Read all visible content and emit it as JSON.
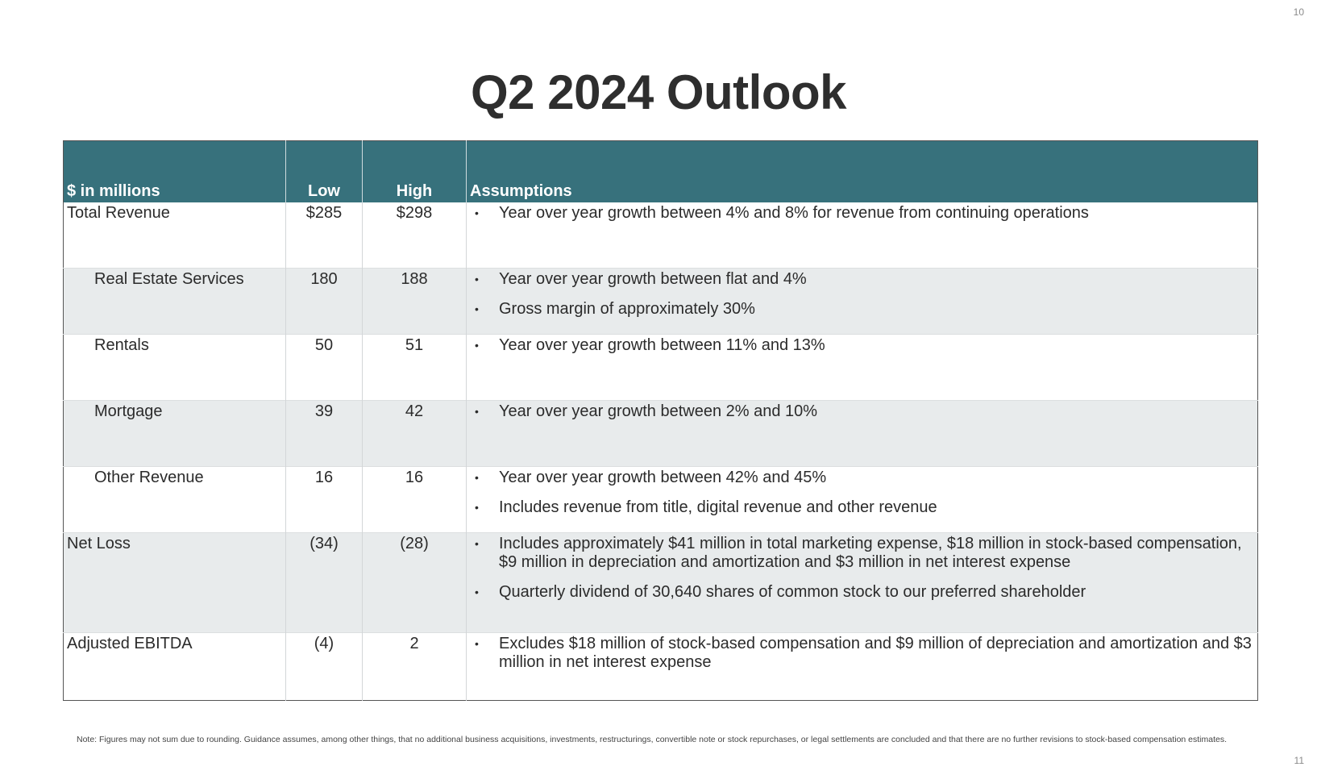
{
  "page_numbers": {
    "top": "10",
    "bottom": "11"
  },
  "title": "Q2 2024 Outlook",
  "table": {
    "headers": {
      "label": "$ in millions",
      "low": "Low",
      "high": "High",
      "assumptions": "Assumptions"
    },
    "rows": [
      {
        "label": "Total Revenue",
        "low": "$285",
        "high": "$298",
        "assumptions": [
          "Year over year growth between 4% and 8% for revenue from continuing operations"
        ]
      },
      {
        "label": "Real Estate Services",
        "low": "180",
        "high": "188",
        "assumptions": [
          "Year over year growth between flat and 4%",
          "Gross margin of approximately 30%"
        ]
      },
      {
        "label": "Rentals",
        "low": "50",
        "high": "51",
        "assumptions": [
          "Year over year growth between 11% and 13%"
        ]
      },
      {
        "label": "Mortgage",
        "low": "39",
        "high": "42",
        "assumptions": [
          "Year over year growth between 2%  and 10%"
        ]
      },
      {
        "label": "Other Revenue",
        "low": "16",
        "high": "16",
        "assumptions": [
          "Year over year growth between 42% and 45%",
          "Includes revenue from title, digital revenue and other revenue"
        ]
      },
      {
        "label": "Net Loss",
        "low": "(34)",
        "high": "(28)",
        "assumptions": [
          "Includes approximately $41 million in total marketing expense, $18 million in stock-based compensation, $9 million in depreciation and amortization and $3 million in net interest expense",
          "Quarterly dividend of 30,640 shares of common stock to our preferred shareholder"
        ]
      },
      {
        "label": "Adjusted EBITDA",
        "low": "(4)",
        "high": "2",
        "assumptions": [
          "Excludes $18 million of stock-based compensation and $9 million of depreciation and amortization and $3 million in net interest expense"
        ]
      }
    ]
  },
  "note": "Note: Figures may not sum due to rounding. Guidance assumes, among other things, that no additional business acquisitions, investments, restructurings, convertible note or stock repurchases, or legal settlements are concluded and that there are no further revisions to stock-based compensation estimates.",
  "colors": {
    "header_bg": "#37717c",
    "alt_row_bg": "#e8ebec"
  }
}
